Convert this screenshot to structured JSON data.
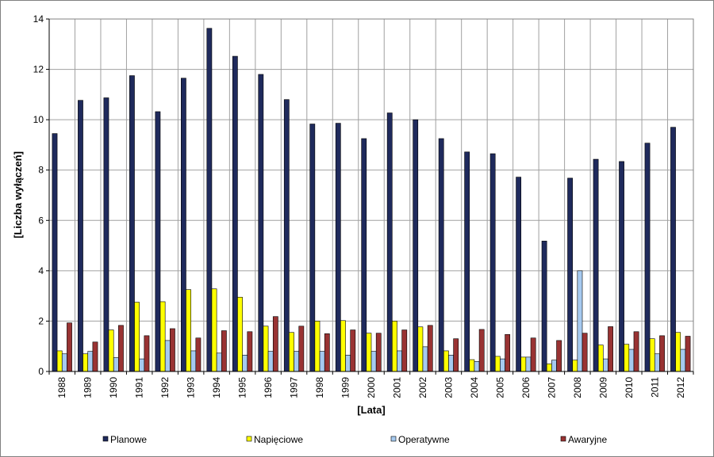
{
  "chart_data": {
    "type": "bar",
    "title": "",
    "xlabel": "[Lata]",
    "ylabel": "[Liczba wyłączeń]",
    "ylim": [
      0,
      14
    ],
    "yticks": [
      0,
      2,
      4,
      6,
      8,
      10,
      12,
      14
    ],
    "grid": true,
    "legend_position": "bottom",
    "categories": [
      "1988",
      "1989",
      "1990",
      "1991",
      "1992",
      "1993",
      "1994",
      "1995",
      "1996",
      "1997",
      "1998",
      "1999",
      "2000",
      "2001",
      "2002",
      "2003",
      "2004",
      "2005",
      "2006",
      "2007",
      "2008",
      "2009",
      "2010",
      "2011",
      "2012"
    ],
    "series": [
      {
        "name": "Planowe",
        "color": "#1f2a5c",
        "values": [
          9.45,
          10.77,
          10.87,
          11.75,
          10.32,
          11.65,
          13.63,
          12.52,
          11.8,
          10.8,
          9.83,
          9.86,
          9.25,
          10.27,
          10.0,
          9.25,
          8.72,
          8.65,
          7.72,
          5.18,
          7.68,
          8.43,
          8.34,
          9.07,
          9.7
        ]
      },
      {
        "name": "Napięciowe",
        "color": "#ffff00",
        "values": [
          0.82,
          0.7,
          1.65,
          2.75,
          2.77,
          3.25,
          3.28,
          2.95,
          1.8,
          1.55,
          2.0,
          2.02,
          1.52,
          2.0,
          1.77,
          0.82,
          0.47,
          0.6,
          0.57,
          0.3,
          0.45,
          1.05,
          1.08,
          1.3,
          1.55
        ]
      },
      {
        "name": "Operatywne",
        "color": "#a6caf0",
        "values": [
          0.7,
          0.8,
          0.55,
          0.5,
          1.23,
          0.82,
          0.73,
          0.65,
          0.8,
          0.8,
          0.8,
          0.65,
          0.8,
          0.82,
          0.98,
          0.65,
          0.4,
          0.5,
          0.57,
          0.45,
          4.0,
          0.5,
          0.88,
          0.7,
          0.88
        ]
      },
      {
        "name": "Awaryjne",
        "color": "#993333",
        "values": [
          1.93,
          1.17,
          1.83,
          1.42,
          1.7,
          1.33,
          1.62,
          1.58,
          2.18,
          1.8,
          1.5,
          1.65,
          1.52,
          1.65,
          1.83,
          1.3,
          1.67,
          1.47,
          1.33,
          1.23,
          1.52,
          1.78,
          1.58,
          1.42,
          1.4
        ]
      }
    ]
  }
}
